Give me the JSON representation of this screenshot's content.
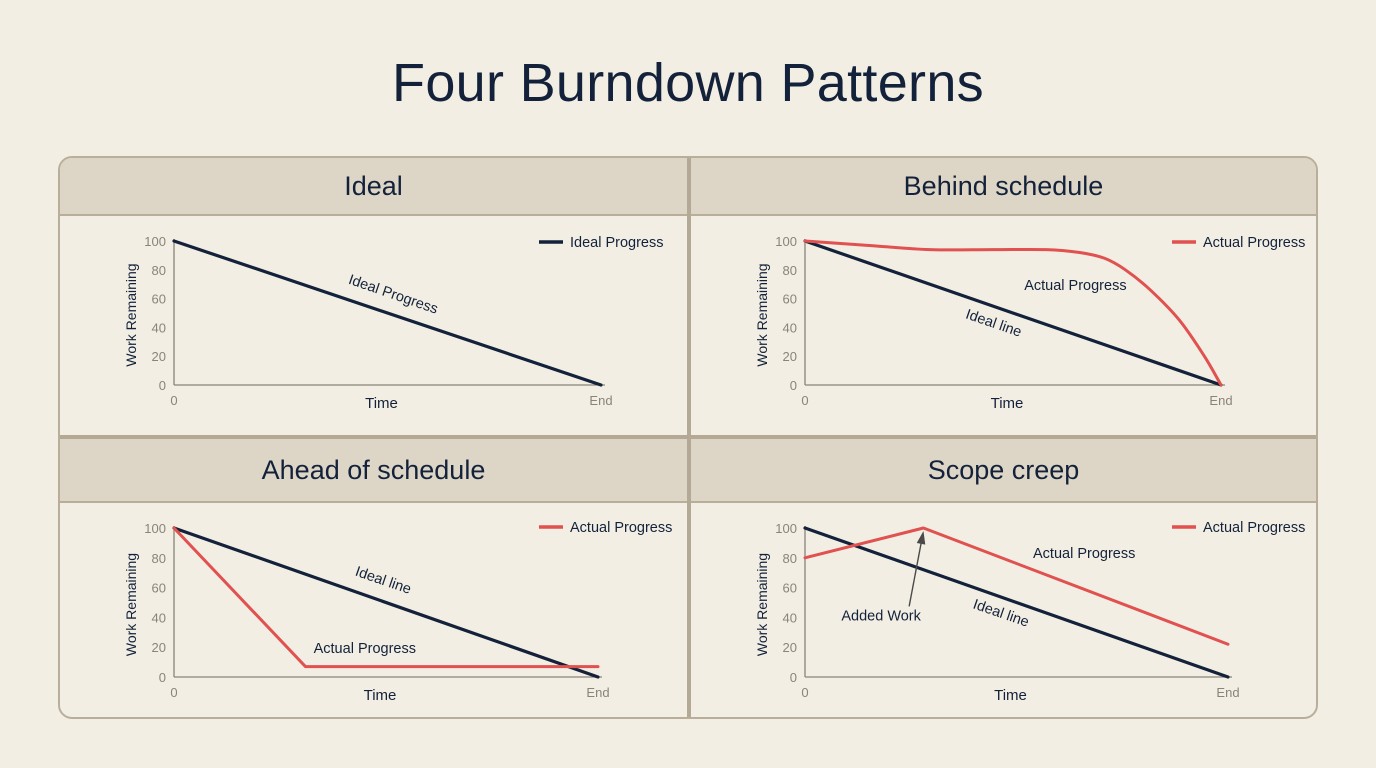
{
  "title": "Four Burndown Patterns",
  "colors": {
    "ideal": "#13223a",
    "actual": "#e0514f",
    "axis": "#8a8478",
    "tick": "#8a8478"
  },
  "chart_data": [
    {
      "type": "line",
      "title": "Ideal",
      "xlabel": "Time",
      "ylabel": "Work Remaining",
      "x_tick_labels": [
        "0",
        "End"
      ],
      "yticks": [
        0,
        20,
        40,
        60,
        80,
        100
      ],
      "xlim": [
        0,
        100
      ],
      "ylim": [
        0,
        100
      ],
      "legend": {
        "label": "Ideal Progress",
        "series": "ideal",
        "position": "top-right"
      },
      "series": [
        {
          "key": "ideal",
          "label": "Ideal Progress",
          "x": [
            0,
            100
          ],
          "y": [
            100,
            0
          ]
        }
      ],
      "annotations": [
        {
          "text": "Ideal Progress",
          "x": 51,
          "y": 60,
          "angle": 19
        }
      ]
    },
    {
      "type": "line",
      "title": "Behind schedule",
      "xlabel": "Time",
      "ylabel": "Work Remaining",
      "x_tick_labels": [
        "0",
        "End"
      ],
      "yticks": [
        0,
        20,
        40,
        60,
        80,
        100
      ],
      "xlim": [
        0,
        100
      ],
      "ylim": [
        0,
        100
      ],
      "legend": {
        "label": "Actual Progress",
        "series": "actual",
        "position": "top-right"
      },
      "series": [
        {
          "key": "ideal",
          "label": "Ideal line",
          "x": [
            0,
            100
          ],
          "y": [
            100,
            0
          ]
        },
        {
          "key": "actual",
          "label": "Actual Progress",
          "x": [
            0,
            15,
            30,
            45,
            58,
            66,
            72,
            77,
            83,
            90,
            96,
            100
          ],
          "y": [
            100,
            97,
            94,
            94,
            94,
            92,
            88,
            80,
            66,
            45,
            20,
            0
          ],
          "smooth": true
        }
      ],
      "annotations": [
        {
          "text": "Actual Progress",
          "x": 65,
          "y": 66,
          "angle": 0
        },
        {
          "text": "Ideal line",
          "x": 45,
          "y": 40,
          "angle": 19
        }
      ]
    },
    {
      "type": "line",
      "title": "Ahead of schedule",
      "xlabel": "Time",
      "ylabel": "Work Remaining",
      "x_tick_labels": [
        "0",
        "End"
      ],
      "yticks": [
        0,
        20,
        40,
        60,
        80,
        100
      ],
      "xlim": [
        0,
        100
      ],
      "ylim": [
        0,
        100
      ],
      "legend": {
        "label": "Actual Progress",
        "series": "actual",
        "position": "top-right"
      },
      "series": [
        {
          "key": "ideal",
          "label": "Ideal line",
          "x": [
            0,
            100
          ],
          "y": [
            100,
            0
          ]
        },
        {
          "key": "actual",
          "label": "Actual Progress",
          "x": [
            0,
            31,
            100
          ],
          "y": [
            100,
            7,
            7
          ]
        }
      ],
      "annotations": [
        {
          "text": "Ideal line",
          "x": 49,
          "y": 62,
          "angle": 19
        },
        {
          "text": "Actual Progress",
          "x": 45,
          "y": 16,
          "angle": 0
        }
      ]
    },
    {
      "type": "line",
      "title": "Scope creep",
      "xlabel": "Time",
      "ylabel": "Work Remaining",
      "x_tick_labels": [
        "0",
        "End"
      ],
      "yticks": [
        0,
        20,
        40,
        60,
        80,
        100
      ],
      "xlim": [
        0,
        100
      ],
      "ylim": [
        0,
        100
      ],
      "legend": {
        "label": "Actual Progress",
        "series": "actual",
        "position": "top-right"
      },
      "series": [
        {
          "key": "ideal",
          "label": "Ideal line",
          "x": [
            0,
            100
          ],
          "y": [
            100,
            0
          ]
        },
        {
          "key": "actual",
          "label": "Actual Progress",
          "x": [
            0,
            28,
            100
          ],
          "y": [
            80,
            100,
            22
          ]
        }
      ],
      "annotations": [
        {
          "text": "Actual Progress",
          "x": 66,
          "y": 80,
          "angle": 0
        },
        {
          "text": "Ideal line",
          "x": 46,
          "y": 40,
          "angle": 19
        },
        {
          "text": "Added Work",
          "x": 18,
          "y": 38,
          "angle": 0,
          "arrow_to": [
            28,
            98
          ]
        }
      ]
    }
  ]
}
